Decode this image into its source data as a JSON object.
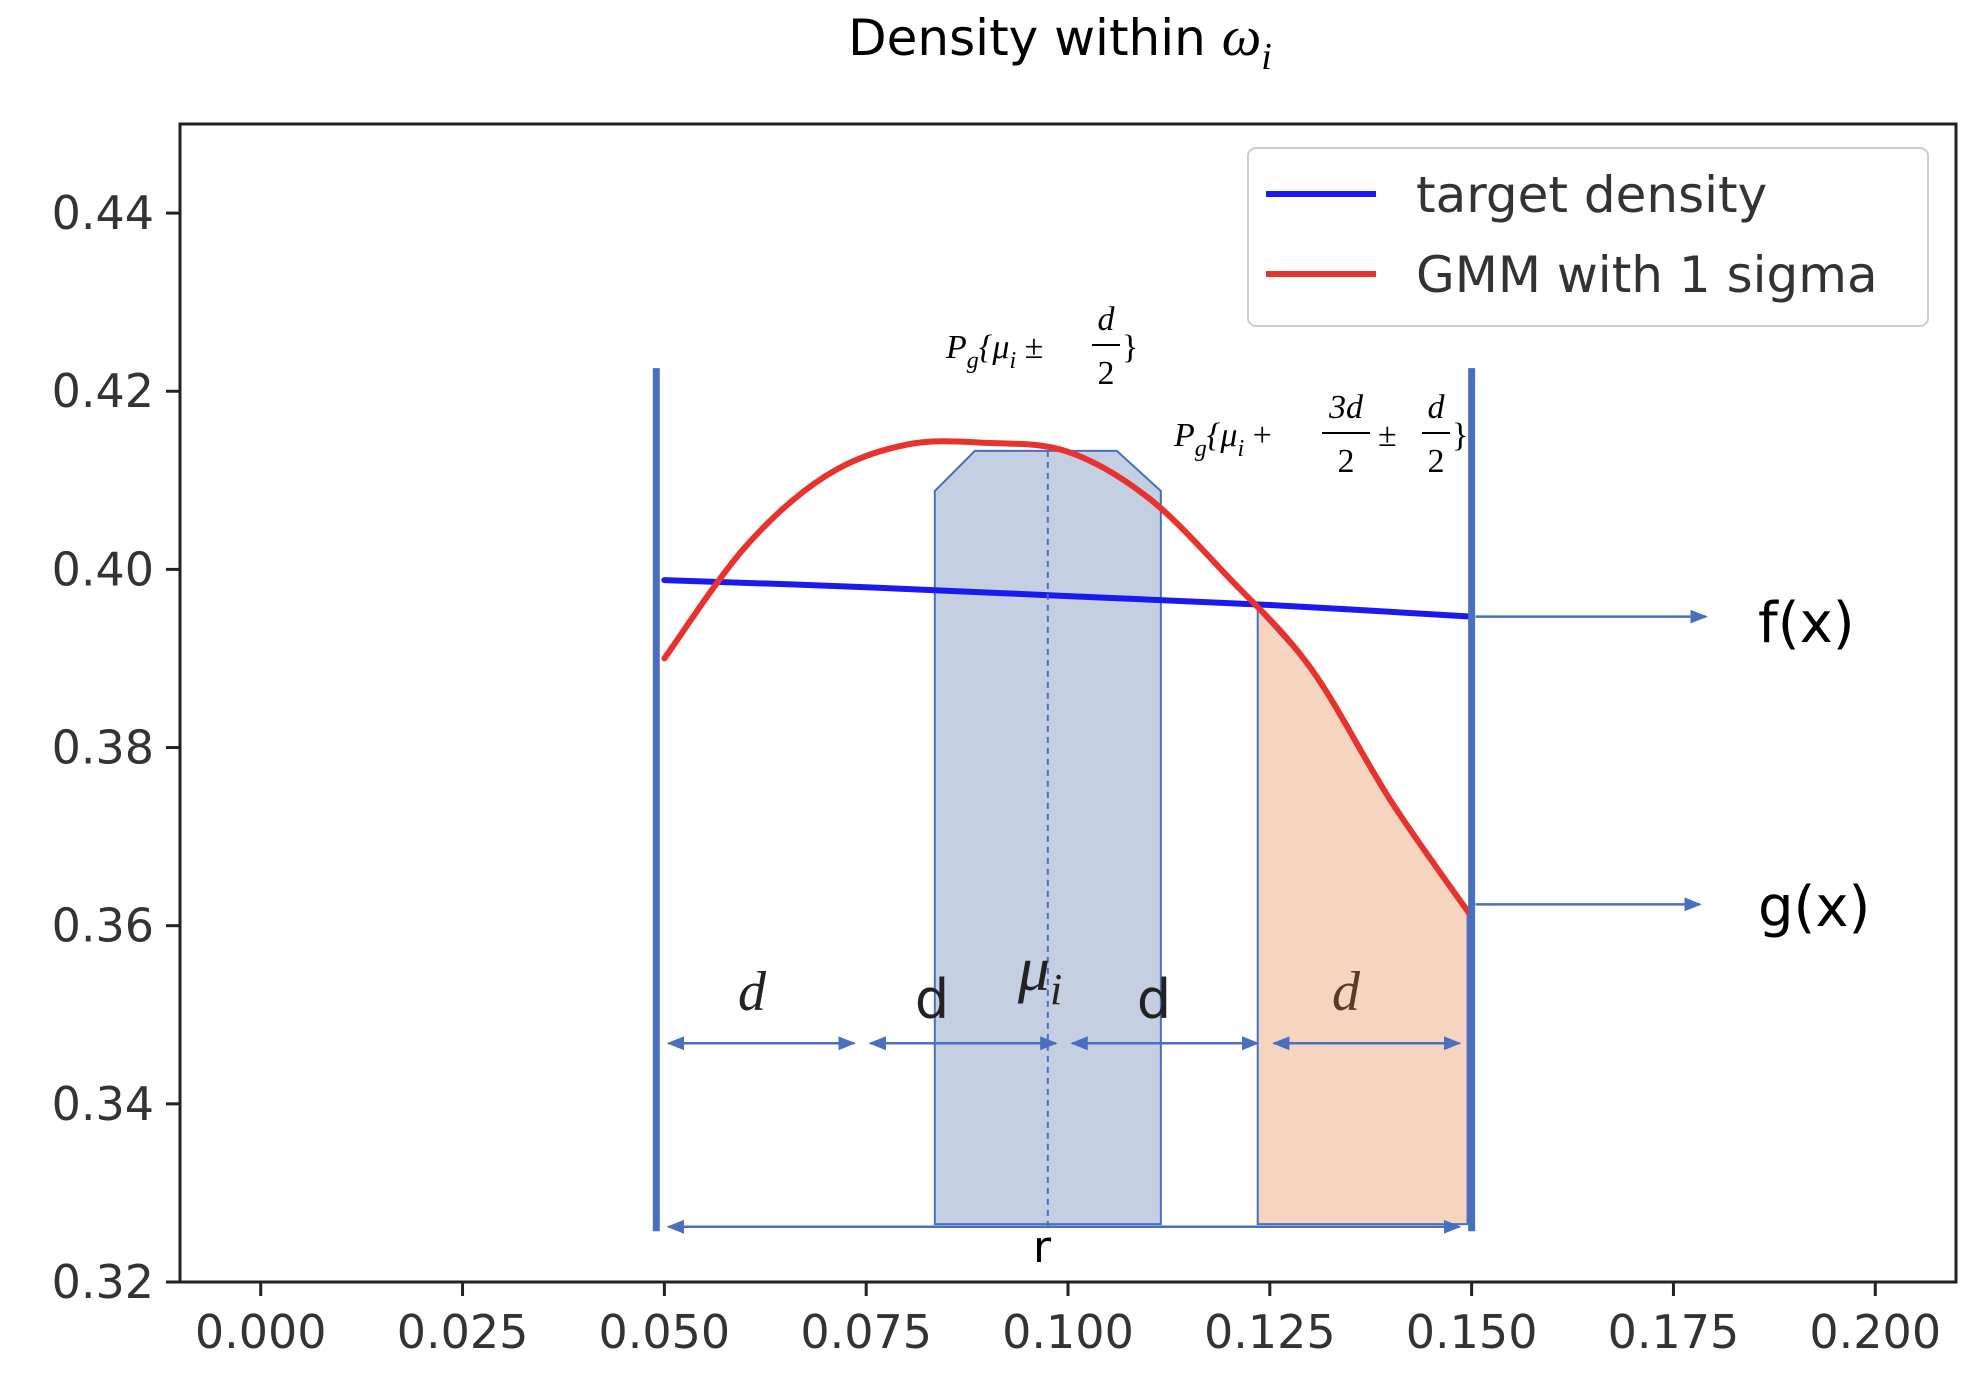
{
  "chart_data": {
    "type": "line",
    "title_prefix": "Density within ",
    "title_symbol": "ω",
    "title_subscript": "i",
    "xlim": [
      -0.01,
      0.21
    ],
    "ylim": [
      0.32,
      0.45
    ],
    "x_ticks": [
      "0.000",
      "0.025",
      "0.050",
      "0.075",
      "0.100",
      "0.125",
      "0.150",
      "0.175",
      "0.200"
    ],
    "y_ticks": [
      "0.32",
      "0.34",
      "0.36",
      "0.38",
      "0.40",
      "0.42",
      "0.44"
    ],
    "legend_position": "top-right",
    "series": [
      {
        "name": "target density",
        "color": "#1a1aee",
        "x": [
          0.05,
          0.075,
          0.1,
          0.125,
          0.15
        ],
        "y": [
          0.3988,
          0.398,
          0.397,
          0.396,
          0.3947
        ]
      },
      {
        "name": "GMM with 1 sigma",
        "color": "#e8322e",
        "x": [
          0.05,
          0.06,
          0.07,
          0.08,
          0.09,
          0.1,
          0.11,
          0.12,
          0.13,
          0.14,
          0.15
        ],
        "y": [
          0.39,
          0.4025,
          0.4105,
          0.414,
          0.4142,
          0.4132,
          0.408,
          0.399,
          0.389,
          0.374,
          0.361
        ]
      }
    ],
    "annotations": {
      "accent_color": "#4a6fc0",
      "shaded_blue_color": "#c4cfe2",
      "shaded_orange_color": "#f5d5c0",
      "blue_region_x": [
        0.0835,
        0.1115
      ],
      "orange_region_x": [
        0.1235,
        0.1495
      ],
      "mu_x": 0.0975,
      "boundary_x": [
        0.049,
        0.15
      ],
      "f_label": "f(x)",
      "g_label": "g(x)",
      "mu_label": "μ",
      "mu_sub": "i",
      "d_italic": "d",
      "d_plain": "d",
      "r_label": "r",
      "formula1": {
        "P": "P",
        "g": "g",
        "open": "{μ",
        "i": "i",
        "pm": " ±",
        "num": "d",
        "den": "2",
        "close": "}"
      },
      "formula2": {
        "P": "P",
        "g": "g",
        "open": "{μ",
        "i": "i",
        "plus": " +",
        "num1": "3d",
        "den1": "2",
        "pm": "±",
        "num2": "d",
        "den2": "2",
        "close": "}"
      }
    }
  }
}
